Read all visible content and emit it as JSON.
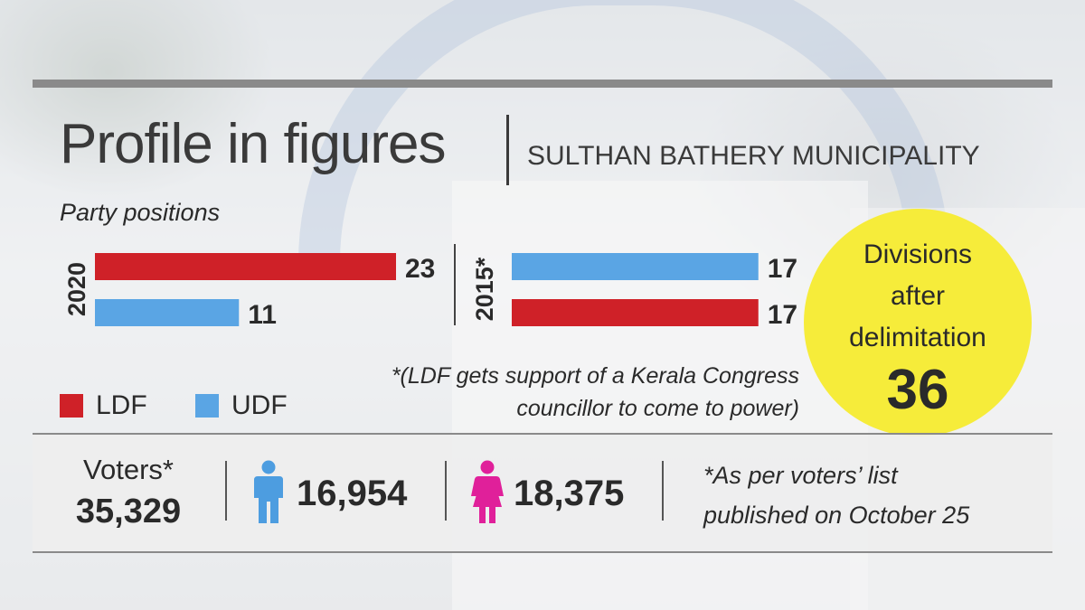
{
  "header": {
    "title": "Profile in figures",
    "subtitle": "SULTHAN BATHERY MUNICIPALITY"
  },
  "colors": {
    "ldf": "#cf2128",
    "udf": "#5aa5e4",
    "highlight": "#f6ec3a",
    "male_icon": "#4d9de0",
    "female_icon": "#e0209a"
  },
  "chart_data": {
    "type": "bar",
    "orientation": "horizontal",
    "title": "Party positions",
    "xlim": [
      0,
      23
    ],
    "groups": [
      {
        "year": "2020",
        "bars": [
          {
            "party": "LDF",
            "value": 23
          },
          {
            "party": "UDF",
            "value": 11
          }
        ]
      },
      {
        "year": "2015*",
        "bars": [
          {
            "party": "UDF",
            "value": 17
          },
          {
            "party": "LDF",
            "value": 17
          }
        ]
      }
    ],
    "legend": [
      {
        "name": "LDF",
        "color": "#cf2128"
      },
      {
        "name": "UDF",
        "color": "#5aa5e4"
      }
    ],
    "legend_position": "bottom-left",
    "grid": false,
    "annotation": "*(LDF gets support of a Kerala Congress councillor to come to power)"
  },
  "footnote": {
    "line1": "*(LDF gets support of a Kerala Congress",
    "line2": "councillor to come to power)"
  },
  "divisions": {
    "label_line1": "Divisions",
    "label_line2": "after",
    "label_line3": "delimitation",
    "value": "36"
  },
  "voters": {
    "label": "Voters*",
    "total": "35,329",
    "male": "16,954",
    "female": "18,375",
    "note_line1": "*As per voters’ list",
    "note_line2": "published on October 25",
    "male_icon": "male-person-icon",
    "female_icon": "female-person-icon"
  }
}
